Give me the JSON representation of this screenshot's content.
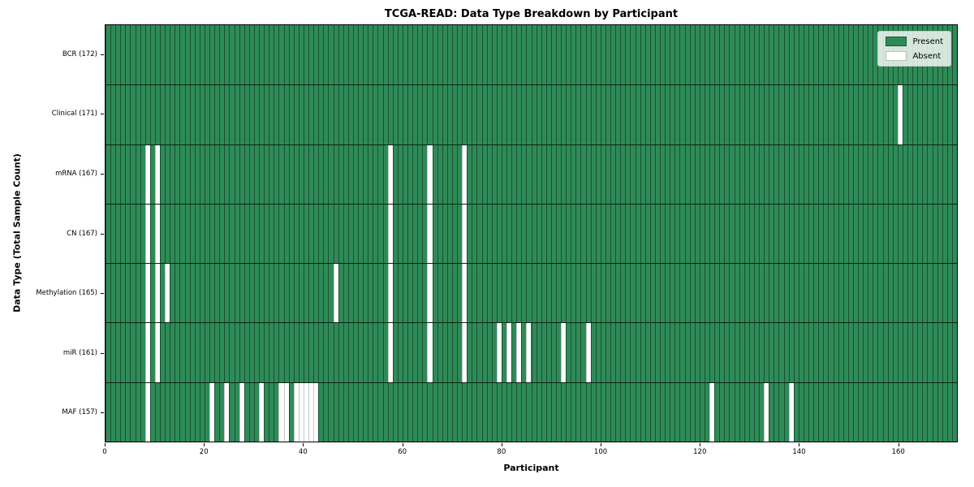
{
  "title": "TCGA-READ: Data Type Breakdown by Participant",
  "colors": {
    "present": "#2e8b57",
    "absent": "#ffffff",
    "cell_edge": "rgba(10,35,22,0.55)",
    "background": "#ffffff"
  },
  "chart_data": {
    "type": "heatmap",
    "title": "TCGA-READ: Data Type Breakdown by Participant",
    "xlabel": "Participant",
    "ylabel": "Data Type (Total Sample Count)",
    "xlim": [
      0,
      172
    ],
    "n_participants": 172,
    "x_ticks": [
      0,
      20,
      40,
      60,
      80,
      100,
      120,
      140,
      160
    ],
    "grid": false,
    "legend_position": "upper right",
    "legend": {
      "present_label": "Present",
      "absent_label": "Absent"
    },
    "value_legend": {
      "present": 1,
      "absent": 0
    },
    "rows": [
      {
        "name": "BCR",
        "total": 172,
        "label": "BCR (172)",
        "absent_participants": []
      },
      {
        "name": "Clinical",
        "total": 171,
        "label": "Clinical (171)",
        "absent_participants": [
          160
        ]
      },
      {
        "name": "mRNA",
        "total": 167,
        "label": "mRNA (167)",
        "absent_participants": [
          8,
          10,
          57,
          65,
          72
        ]
      },
      {
        "name": "CN",
        "total": 167,
        "label": "CN (167)",
        "absent_participants": [
          8,
          10,
          57,
          65,
          72
        ]
      },
      {
        "name": "Methylation",
        "total": 165,
        "label": "Methylation (165)",
        "absent_participants": [
          8,
          10,
          12,
          46,
          57,
          65,
          72
        ]
      },
      {
        "name": "miR",
        "total": 161,
        "label": "miR (161)",
        "absent_participants": [
          8,
          10,
          57,
          65,
          72,
          79,
          81,
          83,
          85,
          92,
          97
        ]
      },
      {
        "name": "MAF",
        "total": 157,
        "label": "MAF (157)",
        "absent_participants": [
          8,
          21,
          24,
          27,
          31,
          35,
          36,
          38,
          39,
          40,
          41,
          42,
          122,
          133,
          138
        ]
      }
    ]
  }
}
